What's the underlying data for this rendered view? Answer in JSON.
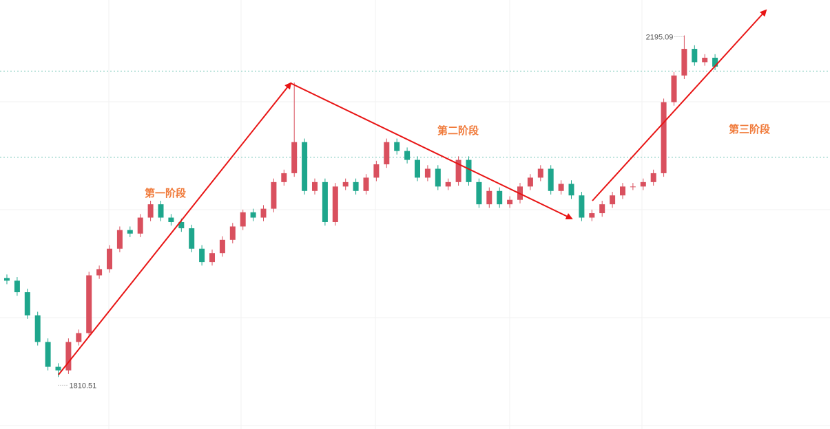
{
  "chart_data": {
    "type": "candlestick",
    "open": [
      1922,
      1919,
      1906,
      1880,
      1850,
      1822,
      1818,
      1850,
      1860,
      1925,
      1932,
      1955,
      1976,
      1972,
      1990,
      2005,
      1990,
      1985,
      1978,
      1955,
      1940,
      1950,
      1965,
      1980,
      1996,
      1990,
      2000,
      2030,
      2040,
      2075,
      2020,
      2030,
      1985,
      2025,
      2030,
      2020,
      2035,
      2050,
      2075,
      2065,
      2055,
      2035,
      2045,
      2025,
      2030,
      2055,
      2030,
      2005,
      2020,
      2005,
      2010,
      2025,
      2035,
      2045,
      2020,
      2028,
      2015,
      1990,
      1995,
      2005,
      2015,
      2025,
      2025,
      2030,
      2040,
      2120,
      2150,
      2180,
      2165,
      2170
    ],
    "high": [
      1926,
      1923,
      1910,
      1884,
      1854,
      1826,
      1854,
      1864,
      1929,
      1936,
      1959,
      1980,
      1980,
      1994,
      2009,
      2009,
      1994,
      1989,
      1982,
      1959,
      1954,
      1969,
      1984,
      1999,
      2000,
      2004,
      2034,
      2044,
      2142,
      2079,
      2034,
      2034,
      2029,
      2034,
      2034,
      2039,
      2054,
      2079,
      2079,
      2069,
      2059,
      2049,
      2049,
      2034,
      2059,
      2059,
      2034,
      2024,
      2024,
      2014,
      2029,
      2039,
      2049,
      2049,
      2032,
      2032,
      2019,
      1999,
      2009,
      2019,
      2029,
      2029,
      2034,
      2044,
      2124,
      2154,
      2195.09,
      2184,
      2174,
      2174
    ],
    "low": [
      1915,
      1902,
      1876,
      1846,
      1818,
      1810.51,
      1814,
      1846,
      1856,
      1921,
      1928,
      1951,
      1968,
      1968,
      1986,
      1986,
      1981,
      1974,
      1951,
      1936,
      1936,
      1946,
      1961,
      1976,
      1986,
      1986,
      1996,
      2026,
      2036,
      2016,
      2016,
      1981,
      1981,
      2021,
      2016,
      2016,
      2031,
      2046,
      2061,
      2051,
      2031,
      2031,
      2021,
      2021,
      2026,
      2026,
      2001,
      2001,
      2001,
      2001,
      2006,
      2021,
      2031,
      2016,
      2016,
      2011,
      1986,
      1986,
      1991,
      2001,
      2011,
      2021,
      2021,
      2026,
      2036,
      2116,
      2146,
      2161,
      2161,
      2156
    ],
    "close": [
      1919,
      1906,
      1880,
      1850,
      1822,
      1818,
      1850,
      1860,
      1925,
      1932,
      1955,
      1976,
      1972,
      1990,
      2005,
      1990,
      1985,
      1978,
      1955,
      1940,
      1950,
      1965,
      1980,
      1996,
      1990,
      2000,
      2030,
      2040,
      2075,
      2020,
      2030,
      1985,
      2025,
      2030,
      2020,
      2035,
      2050,
      2075,
      2065,
      2055,
      2035,
      2045,
      2025,
      2030,
      2055,
      2030,
      2005,
      2020,
      2005,
      2010,
      2025,
      2035,
      2045,
      2020,
      2028,
      2015,
      1990,
      1995,
      2005,
      2015,
      2025,
      2025,
      2030,
      2040,
      2120,
      2150,
      2180,
      2165,
      2170,
      2160
    ],
    "up_color": "#d9505e",
    "down_color": "#1ea68c",
    "ylim": [
      1752,
      2235
    ],
    "annotations": [
      "第一阶段",
      "第二阶段",
      "第三阶段"
    ],
    "price_lines": [
      2155,
      2058
    ]
  }
}
